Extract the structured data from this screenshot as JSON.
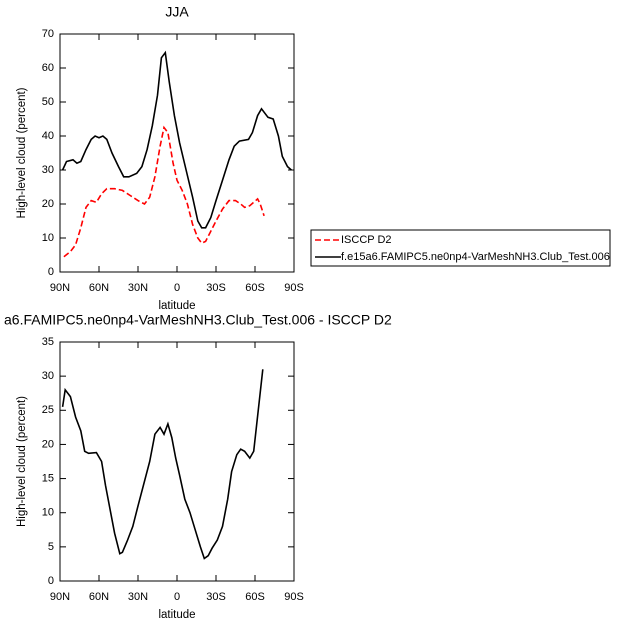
{
  "chart_data": [
    {
      "type": "line",
      "title": "JJA",
      "xlabel": "latitude",
      "ylabel": "High-level cloud (percent)",
      "xlim": [
        90,
        -90
      ],
      "ylim": [
        0,
        70
      ],
      "xticks": [
        {
          "value": 90,
          "label": "90N"
        },
        {
          "value": 60,
          "label": "60N"
        },
        {
          "value": 30,
          "label": "30N"
        },
        0,
        {
          "value": -30,
          "label": "30S"
        },
        {
          "value": -60,
          "label": "60S"
        },
        {
          "value": -90,
          "label": "90S"
        }
      ],
      "yticks": [
        0,
        10,
        20,
        30,
        40,
        50,
        60,
        70
      ],
      "legend": "outside-right",
      "series": [
        {
          "name": "ISCCP D2",
          "color": "#ff0000",
          "dash": true,
          "x": [
            87,
            82,
            78,
            74,
            70,
            66,
            62,
            58,
            54,
            48,
            42,
            36,
            30,
            25,
            21,
            17,
            13,
            10,
            7,
            3,
            0,
            -4,
            -8,
            -12,
            -16,
            -19,
            -22,
            -26,
            -30,
            -35,
            -40,
            -45,
            -49,
            -52,
            -56,
            -62,
            -64,
            -67
          ],
          "values": [
            4.5,
            6,
            8,
            13,
            19,
            21,
            20.5,
            23,
            24.5,
            24.5,
            24,
            22.5,
            21,
            20,
            22,
            28,
            37,
            42.5,
            41,
            32,
            27,
            24,
            20,
            14,
            10,
            8.5,
            9,
            12,
            15,
            18.5,
            21,
            21,
            20,
            19,
            19.5,
            21.5,
            20,
            16.5
          ]
        },
        {
          "name": "f.e15a6.FAMIPC5.ne0np4-VarMeshNH3.Club_Test.006",
          "color": "#000000",
          "dash": false,
          "x": [
            88,
            85,
            80,
            77,
            74,
            70,
            66,
            63,
            60,
            57,
            54,
            50,
            45,
            41,
            37,
            31,
            27,
            23,
            19,
            15,
            12,
            9,
            6,
            2,
            -2,
            -7,
            -12,
            -16,
            -19,
            -22,
            -26,
            -30,
            -35,
            -40,
            -44,
            -48,
            -55,
            -58,
            -62,
            -65,
            -70,
            -74,
            -78,
            -81,
            -85,
            -88
          ],
          "values": [
            30,
            32.5,
            33,
            32,
            32.5,
            36,
            39,
            40,
            39.5,
            40,
            39,
            35,
            31,
            28,
            28,
            29,
            31,
            36,
            43,
            52,
            63,
            64.5,
            56,
            46,
            38,
            30,
            22,
            15,
            13,
            13,
            16,
            21,
            27,
            33,
            37,
            38.5,
            39,
            41,
            46,
            48,
            45.5,
            45,
            40,
            34,
            31,
            30
          ]
        }
      ]
    },
    {
      "type": "line",
      "title": "a6.FAMIPC5.ne0np4-VarMeshNH3.Club_Test.006 - ISCCP D2",
      "xlabel": "latitude",
      "ylabel": "High-level cloud (percent)",
      "xlim": [
        90,
        -90
      ],
      "ylim": [
        0,
        35
      ],
      "xticks": [
        {
          "value": 90,
          "label": "90N"
        },
        {
          "value": 60,
          "label": "60N"
        },
        {
          "value": 30,
          "label": "30N"
        },
        0,
        {
          "value": -30,
          "label": "30S"
        },
        {
          "value": -60,
          "label": "60S"
        },
        {
          "value": -90,
          "label": "90S"
        }
      ],
      "yticks": [
        0,
        5,
        10,
        15,
        20,
        25,
        30,
        35
      ],
      "series": [
        {
          "color": "#000000",
          "dash": false,
          "x": [
            88,
            86,
            82,
            78,
            74,
            71,
            68,
            62,
            58,
            55,
            52,
            48,
            44,
            42,
            38,
            34,
            30,
            21,
            17,
            13,
            10,
            7,
            4,
            1,
            -2,
            -6,
            -10,
            -14,
            -18,
            -21,
            -24,
            -27,
            -31,
            -35,
            -39,
            -42,
            -46,
            -49,
            -52,
            -56,
            -59,
            -66
          ],
          "values": [
            25.5,
            28,
            27,
            24,
            22,
            19,
            18.7,
            18.8,
            17.5,
            14,
            11,
            7,
            4,
            4.2,
            6,
            8,
            11,
            17.5,
            21.5,
            22.5,
            21.5,
            23,
            21,
            18,
            15.5,
            12,
            10,
            7.5,
            5,
            3.3,
            3.7,
            4.8,
            6,
            8,
            12,
            16,
            18.5,
            19.3,
            19,
            18,
            19,
            31
          ]
        }
      ]
    }
  ]
}
